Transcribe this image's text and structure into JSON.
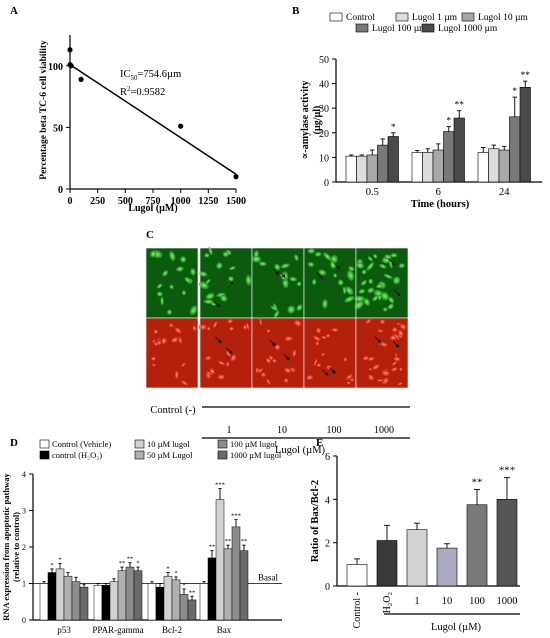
{
  "panel_labels": {
    "a": "A",
    "b": "B",
    "c": "C",
    "d": "D",
    "e": "E"
  },
  "colors": {
    "green_cell": "#3fbf3f",
    "red_cell": "#e0321e",
    "black": "#000000"
  },
  "chart_data": [
    {
      "panel": "A",
      "type": "scatter",
      "xlabel": "Lugol (µM)",
      "ylabel": "Percentage beta TC-6 cell viability",
      "xticks": [
        "0",
        "250",
        "500",
        "750",
        "1000",
        "1250",
        "1500"
      ],
      "yticks": [
        "0",
        "50",
        "100"
      ],
      "xlim": [
        0,
        1500
      ],
      "ylim": [
        0,
        125
      ],
      "points": [
        {
          "x": 0,
          "y": 113
        },
        {
          "x": 1,
          "y": 101
        },
        {
          "x": 10,
          "y": 100
        },
        {
          "x": 100,
          "y": 89
        },
        {
          "x": 1000,
          "y": 51
        },
        {
          "x": 1500,
          "y": 10
        }
      ],
      "fit_line": {
        "x": [
          0,
          1500
        ],
        "y": [
          101,
          12
        ]
      },
      "ic50_prefix": "IC",
      "ic50_sub": "50",
      "ic50_value": "=754.6µm",
      "r2_prefix": "R",
      "r2_sup": "2",
      "r2_value": "=0.9582"
    },
    {
      "panel": "B",
      "type": "bar",
      "xlabel": "Time (hours)",
      "ylabel": "∝-amylase activity",
      "ylabel2": "(µg/µl)",
      "categories": [
        "0.5",
        "6",
        "24"
      ],
      "ylim": [
        0,
        50
      ],
      "yticks": [
        "0",
        "10",
        "20",
        "30",
        "40",
        "50"
      ],
      "series": [
        {
          "name": "Control",
          "color": "#ffffff",
          "values": [
            10.5,
            12,
            12
          ],
          "errors": [
            0.5,
            0.8,
            2
          ]
        },
        {
          "name": "Lugol 1 µm",
          "color": "#dcdcdc",
          "values": [
            10.5,
            12,
            13.5
          ],
          "errors": [
            0.5,
            1.5,
            1.5
          ]
        },
        {
          "name": "Lugol 10 µm",
          "color": "#a8a8a8",
          "values": [
            11,
            13,
            13
          ],
          "errors": [
            2,
            2.5,
            1.5
          ]
        },
        {
          "name": "Lugol 100 µm",
          "color": "#787878",
          "values": [
            15,
            20.5,
            26.5
          ],
          "errors": [
            2.5,
            2,
            8
          ]
        },
        {
          "name": "Lugol 1000 µm",
          "color": "#4a4a4a",
          "values": [
            18.5,
            26,
            38.5
          ],
          "errors": [
            1.5,
            3,
            2.5
          ]
        }
      ],
      "significance": [
        {
          "category": "0.5",
          "series": "Lugol 1000 µm",
          "label": "*"
        },
        {
          "category": "6",
          "series": "Lugol 100 µm",
          "label": "*"
        },
        {
          "category": "6",
          "series": "Lugol 1000 µm",
          "label": "**"
        },
        {
          "category": "24",
          "series": "Lugol 100 µm",
          "label": "*"
        },
        {
          "category": "24",
          "series": "Lugol 1000 µm",
          "label": "**"
        }
      ]
    },
    {
      "panel": "D",
      "type": "bar",
      "ylabel": "RNA expression from apoptotic pathway",
      "ylabel2": "(relative to control)",
      "categories": [
        "p53",
        "PPAR-gamma",
        "Bcl-2",
        "Bax"
      ],
      "ylim": [
        0,
        4
      ],
      "yticks": [
        "0",
        "1",
        "2",
        "3",
        "4"
      ],
      "reference_line": {
        "y": 1,
        "label": "Basal"
      },
      "series": [
        {
          "name": "Control (Vehicle)",
          "color": "#ffffff",
          "values": [
            1.0,
            0.95,
            1.0,
            1.0
          ],
          "errors": [
            0.05,
            0.05,
            0.05,
            0.05
          ]
        },
        {
          "name": "control (H₂O₂)",
          "color": "#000000",
          "values": [
            1.3,
            0.95,
            0.9,
            1.7
          ],
          "errors": [
            0.1,
            0.05,
            0.1,
            0.2
          ]
        },
        {
          "name": "10 µM lugol",
          "color": "#d2d2d2",
          "values": [
            1.4,
            1.05,
            1.2,
            3.3
          ],
          "errors": [
            0.15,
            0.08,
            0.1,
            0.3
          ]
        },
        {
          "name": "50 µM Lugol",
          "color": "#b0b0b0",
          "values": [
            1.2,
            1.35,
            1.1,
            1.95
          ],
          "errors": [
            0.1,
            0.1,
            0.08,
            0.1
          ]
        },
        {
          "name": "100 µM lugol",
          "color": "#8c8c8c",
          "values": [
            1.05,
            1.45,
            0.7,
            2.55
          ],
          "errors": [
            0.12,
            0.12,
            0.15,
            0.2
          ]
        },
        {
          "name": "1000 µM lugol",
          "color": "#6a6a6a",
          "values": [
            0.9,
            1.35,
            0.55,
            1.9
          ],
          "errors": [
            0.08,
            0.1,
            0.1,
            0.15
          ]
        }
      ],
      "significance": [
        {
          "category": "p53",
          "series": "control (H₂O₂)",
          "label": "*"
        },
        {
          "category": "p53",
          "series": "10 µM lugol",
          "label": "*"
        },
        {
          "category": "PPAR-gamma",
          "series": "50 µM Lugol",
          "label": "**"
        },
        {
          "category": "PPAR-gamma",
          "series": "100 µM lugol",
          "label": "**"
        },
        {
          "category": "PPAR-gamma",
          "series": "1000 µM lugol",
          "label": "*"
        },
        {
          "category": "Bcl-2",
          "series": "10 µM lugol",
          "label": "*"
        },
        {
          "category": "Bcl-2",
          "series": "50 µM Lugol",
          "label": "*"
        },
        {
          "category": "Bcl-2",
          "series": "100 µM lugol",
          "label": "*"
        },
        {
          "category": "Bcl-2",
          "series": "1000 µM lugol",
          "label": "**"
        },
        {
          "category": "Bax",
          "series": "control (H₂O₂)",
          "label": "**"
        },
        {
          "category": "Bax",
          "series": "10 µM lugol",
          "label": "***"
        },
        {
          "category": "Bax",
          "series": "50 µM Lugol",
          "label": "**"
        },
        {
          "category": "Bax",
          "series": "100 µM lugol",
          "label": "***"
        },
        {
          "category": "Bax",
          "series": "1000 µM lugol",
          "label": "**"
        }
      ]
    },
    {
      "panel": "E",
      "type": "bar",
      "ylabel": "Ratio of Bax/Bcl-2",
      "xlabel": "Lugol (µM)",
      "categories": [
        "Control -",
        "H₂O₂",
        "1",
        "10",
        "100",
        "1000"
      ],
      "ylim": [
        0,
        6
      ],
      "yticks": [
        "0",
        "2",
        "4",
        "6"
      ],
      "colors": [
        "#ffffff",
        "#3a3a3a",
        "#d2d2d2",
        "#a9a9bf",
        "#7a7a7a",
        "#555555"
      ],
      "values": [
        1.0,
        2.1,
        2.6,
        1.75,
        3.75,
        4.0
      ],
      "errors": [
        0.25,
        0.7,
        0.3,
        0.2,
        0.7,
        1.0
      ],
      "significance": [
        {
          "category": "100",
          "label": "**"
        },
        {
          "category": "1000",
          "label": "***"
        }
      ]
    }
  ],
  "panel_c": {
    "control_label": "Control (-)",
    "lugol_ticks": [
      "1",
      "10",
      "100",
      "1000"
    ],
    "lugol_label": "Lugol (µM)"
  }
}
